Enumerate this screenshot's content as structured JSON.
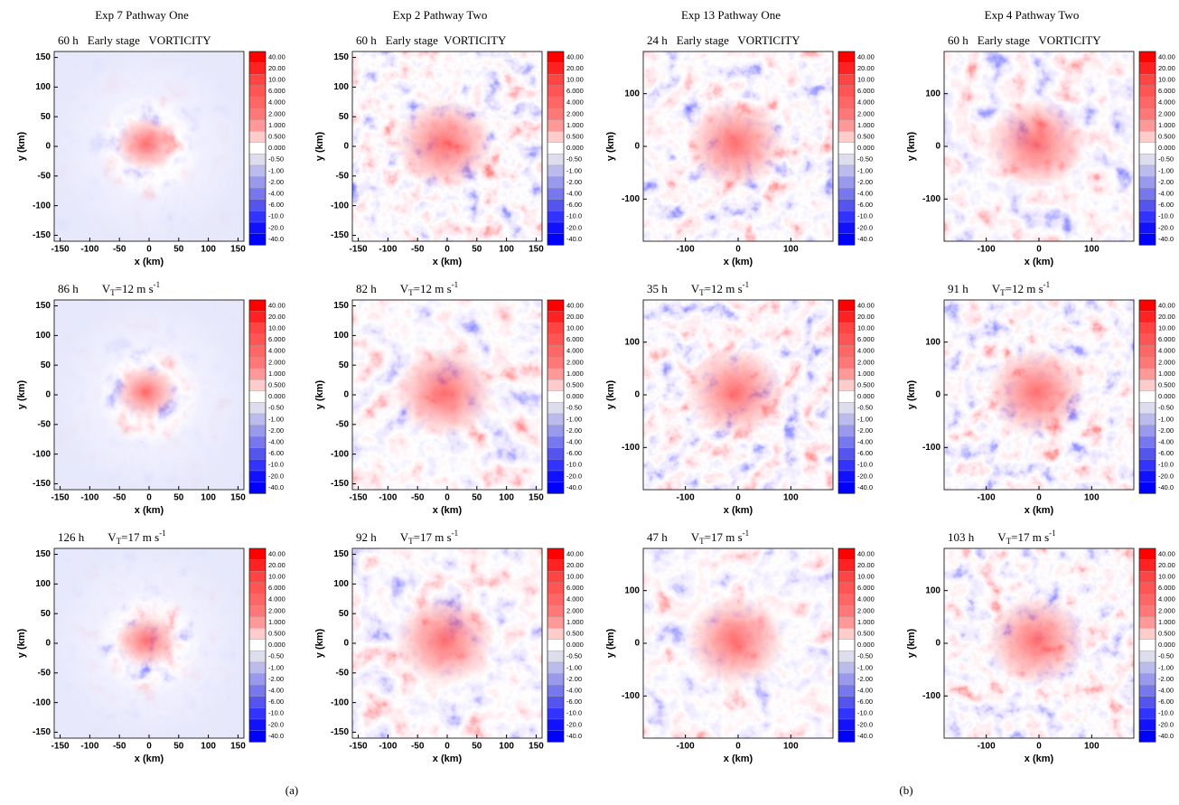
{
  "columns": [
    {
      "title": "Exp 7 Pathway One",
      "panels": [
        {
          "time": "60 h",
          "label": "Early stage   VORTICITY"
        },
        {
          "time": "86 h",
          "label": {
            "v": "V",
            "sub": "T",
            "eq": "=12 m s",
            "sup": "-1"
          }
        },
        {
          "time": "126 h",
          "label": {
            "v": "V",
            "sub": "T",
            "eq": "=17 m s",
            "sup": "-1"
          }
        }
      ]
    },
    {
      "title": "Exp 2 Pathway Two",
      "panels": [
        {
          "time": "60 h",
          "label": "Early stage  VORTICITY"
        },
        {
          "time": "82 h",
          "label": {
            "v": "V",
            "sub": "T",
            "eq": "=12 m s",
            "sup": "-1"
          }
        },
        {
          "time": "92 h",
          "label": {
            "v": "V",
            "sub": "T",
            "eq": "=17 m s",
            "sup": "-1"
          }
        }
      ]
    },
    {
      "title": "Exp 13 Pathway One",
      "panels": [
        {
          "time": "24 h",
          "label": "Early stage   VORTICITY"
        },
        {
          "time": "35 h",
          "label": {
            "v": "V",
            "sub": "T",
            "eq": "=12 m s",
            "sup": "-1"
          }
        },
        {
          "time": "47 h",
          "label": {
            "v": "V",
            "sub": "T",
            "eq": "=17 m s",
            "sup": "-1"
          }
        }
      ]
    },
    {
      "title": "Exp 4 Pathway Two",
      "panels": [
        {
          "time": "60 h",
          "label": "Early stage   VORTICITY"
        },
        {
          "time": "91 h",
          "label": {
            "v": "V",
            "sub": "T",
            "eq": "=12 m s",
            "sup": "-1"
          }
        },
        {
          "time": "103 h",
          "label": {
            "v": "V",
            "sub": "T",
            "eq": "=17 m s",
            "sup": "-1"
          }
        }
      ]
    }
  ],
  "axes": {
    "x_label": "x (km)",
    "y_label": "y (km)",
    "ticks_a": [
      -150,
      -100,
      -50,
      0,
      50,
      100,
      150
    ],
    "ticks_b": [
      -100,
      0,
      100
    ]
  },
  "colorbar": [
    "40.00",
    "20.00",
    "10.00",
    "6.000",
    "4.000",
    "2.000",
    "1.000",
    "0.500",
    "0.000",
    "-0.50",
    "-1.00",
    "-2.00",
    "-4.00",
    "-6.00",
    "-10.0",
    "-20.0",
    "-40.0"
  ],
  "captions": [
    "(a)",
    "(b)"
  ]
}
